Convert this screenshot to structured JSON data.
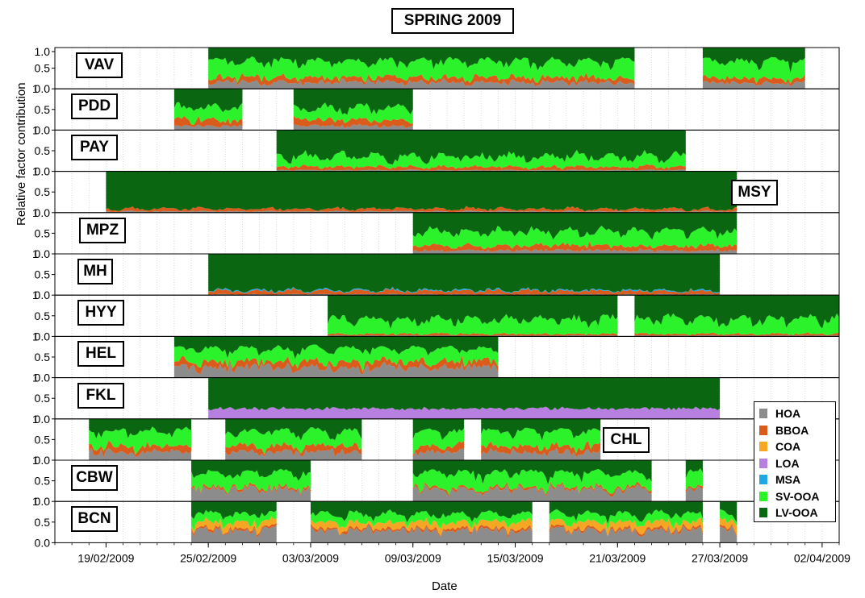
{
  "chart_data": {
    "type": "area",
    "title": "SPRING 2009",
    "xlabel": "Date",
    "ylabel": "Relative factor contribution",
    "ylim": [
      0,
      1.0
    ],
    "yticks": [
      "0.0",
      "0.5",
      "1.0"
    ],
    "x_range": [
      "2009-02-16",
      "2009-04-03"
    ],
    "xtick_labels": [
      "19/02/2009",
      "25/02/2009",
      "03/03/2009",
      "09/03/2009",
      "15/03/2009",
      "21/03/2009",
      "27/03/2009",
      "02/04/2009"
    ],
    "xtick_dates": [
      "2009-02-19",
      "2009-02-25",
      "2009-03-03",
      "2009-03-09",
      "2009-03-15",
      "2009-03-21",
      "2009-03-27",
      "2009-04-02"
    ],
    "factors": [
      "HOA",
      "BBOA",
      "COA",
      "LOA",
      "MSA",
      "SV-OOA",
      "LV-OOA"
    ],
    "factor_colors": {
      "HOA": "#8c8c8c",
      "BBOA": "#d95c1c",
      "COA": "#f5a623",
      "LOA": "#b77fe0",
      "MSA": "#1fa7e6",
      "SV-OOA": "#2cf22c",
      "LV-OOA": "#0b6612"
    },
    "legend_position": "bottom-right",
    "sites": [
      {
        "name": "VAV",
        "label_side": "left",
        "periods": [
          [
            "2009-02-25",
            "2009-03-22"
          ],
          [
            "2009-03-26",
            "2009-04-01"
          ]
        ],
        "mean": {
          "HOA": 0.15,
          "BBOA": 0.12,
          "SV-OOA": 0.4,
          "LV-OOA": 0.33
        }
      },
      {
        "name": "PDD",
        "label_side": "left",
        "periods": [
          [
            "2009-02-23",
            "2009-02-27"
          ],
          [
            "2009-03-02",
            "2009-03-09"
          ]
        ],
        "mean": {
          "HOA": 0.1,
          "BBOA": 0.15,
          "SV-OOA": 0.3,
          "LV-OOA": 0.45
        }
      },
      {
        "name": "PAY",
        "label_side": "left",
        "periods": [
          [
            "2009-03-01",
            "2009-03-25"
          ]
        ],
        "mean": {
          "HOA": 0.03,
          "BBOA": 0.08,
          "SV-OOA": 0.25,
          "LV-OOA": 0.64
        }
      },
      {
        "name": "MSY",
        "label_side": "right",
        "periods": [
          [
            "2009-02-19",
            "2009-03-28"
          ]
        ],
        "mean": {
          "HOA": 0.03,
          "BBOA": 0.06,
          "SV-OOA": 0.0,
          "LV-OOA": 0.91
        }
      },
      {
        "name": "MPZ",
        "label_side": "left",
        "periods": [
          [
            "2009-03-09",
            "2009-03-28"
          ]
        ],
        "mean": {
          "HOA": 0.08,
          "BBOA": 0.12,
          "SV-OOA": 0.35,
          "LV-OOA": 0.45
        }
      },
      {
        "name": "MH",
        "label_side": "left",
        "periods": [
          [
            "2009-02-25",
            "2009-03-27"
          ]
        ],
        "mean": {
          "HOA": 0.02,
          "BBOA": 0.08,
          "MSA": 0.02,
          "SV-OOA": 0.0,
          "LV-OOA": 0.88
        }
      },
      {
        "name": "HYY",
        "label_side": "left",
        "periods": [
          [
            "2009-03-04",
            "2009-03-21"
          ],
          [
            "2009-03-22",
            "2009-04-03"
          ]
        ],
        "mean": {
          "HOA": 0.02,
          "BBOA": 0.04,
          "SV-OOA": 0.35,
          "LV-OOA": 0.59
        }
      },
      {
        "name": "HEL",
        "label_side": "left",
        "periods": [
          [
            "2009-02-23",
            "2009-03-14"
          ]
        ],
        "mean": {
          "HOA": 0.25,
          "BBOA": 0.15,
          "SV-OOA": 0.3,
          "LV-OOA": 0.3
        }
      },
      {
        "name": "FKL",
        "label_side": "left",
        "periods": [
          [
            "2009-02-25",
            "2009-03-27"
          ]
        ],
        "mean": {
          "LOA": 0.25,
          "LV-OOA": 0.75
        }
      },
      {
        "name": "CHL",
        "label_side": "right",
        "periods": [
          [
            "2009-02-18",
            "2009-02-24"
          ],
          [
            "2009-02-26",
            "2009-03-06"
          ],
          [
            "2009-03-09",
            "2009-03-12"
          ],
          [
            "2009-03-13",
            "2009-03-20"
          ]
        ],
        "mean": {
          "HOA": 0.2,
          "BBOA": 0.15,
          "SV-OOA": 0.35,
          "LV-OOA": 0.3
        }
      },
      {
        "name": "CBW",
        "label_side": "left",
        "periods": [
          [
            "2009-02-24",
            "2009-03-03"
          ],
          [
            "2009-03-09",
            "2009-03-23"
          ],
          [
            "2009-03-25",
            "2009-03-26"
          ]
        ],
        "mean": {
          "HOA": 0.3,
          "BBOA": 0.05,
          "SV-OOA": 0.35,
          "LV-OOA": 0.3
        }
      },
      {
        "name": "BCN",
        "label_side": "left",
        "periods": [
          [
            "2009-02-24",
            "2009-03-01"
          ],
          [
            "2009-03-03",
            "2009-03-16"
          ],
          [
            "2009-03-17",
            "2009-03-26"
          ],
          [
            "2009-03-27",
            "2009-03-28"
          ]
        ],
        "mean": {
          "HOA": 0.3,
          "BBOA": 0.05,
          "COA": 0.15,
          "SV-OOA": 0.2,
          "LV-OOA": 0.3
        }
      }
    ]
  }
}
